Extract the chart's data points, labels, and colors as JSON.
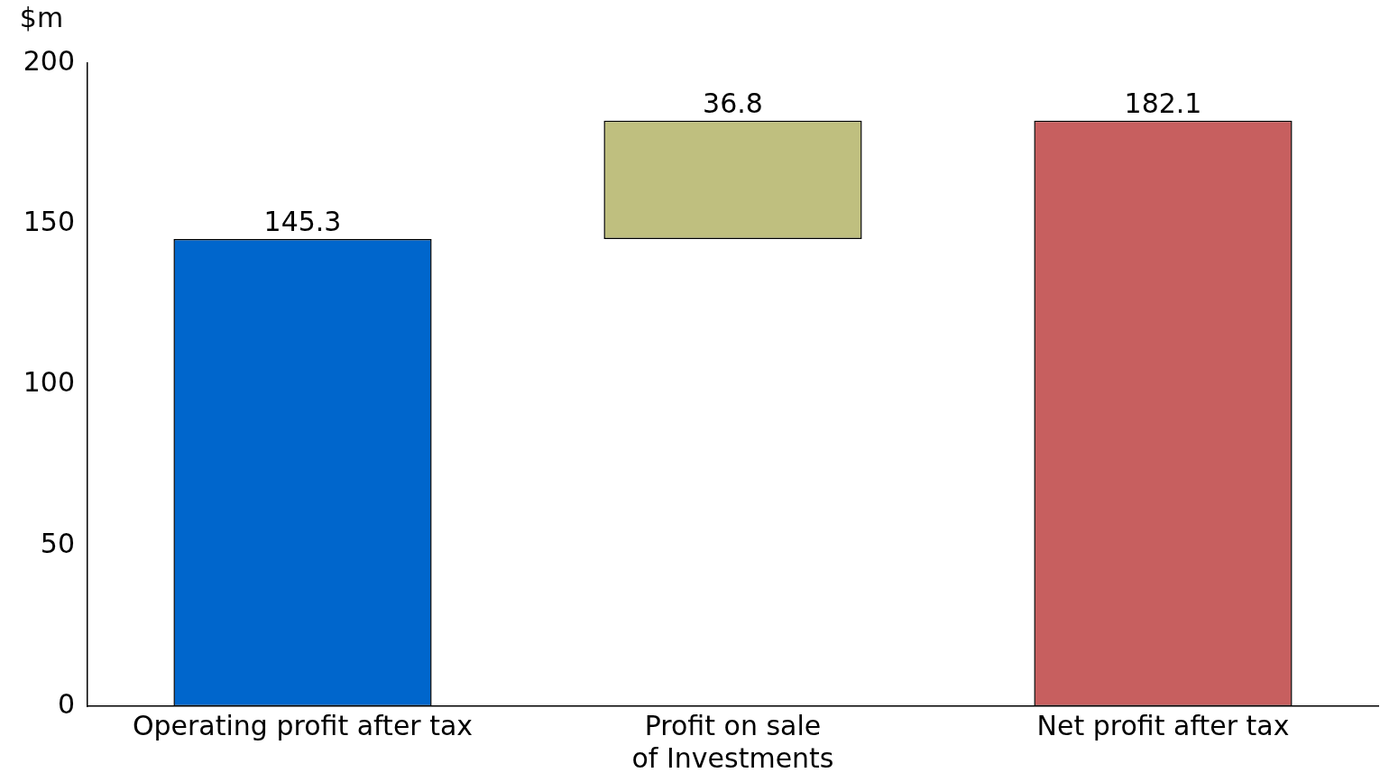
{
  "chart_data": {
    "type": "bar",
    "ylabel": "$m",
    "categories": [
      "Operating profit after tax",
      "Profit on sale\nof Investments",
      "Net profit after tax"
    ],
    "values": [
      145.3,
      36.8,
      182.1
    ],
    "base": [
      0,
      145.3,
      0
    ],
    "colors": [
      "#0066cc",
      "#bfbf7f",
      "#c75f5f"
    ],
    "ylim": [
      0,
      200
    ],
    "yticks": [
      0,
      50,
      100,
      150,
      200
    ],
    "data_labels": true,
    "grid": false,
    "legend": false
  }
}
